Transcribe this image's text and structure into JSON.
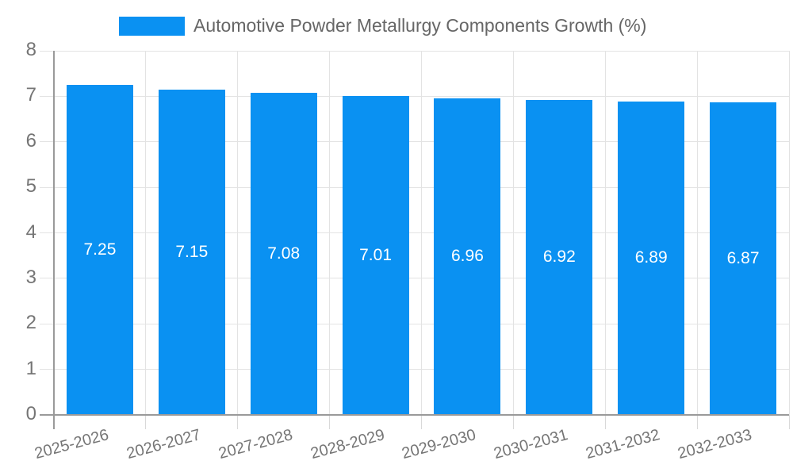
{
  "chart_data": {
    "type": "bar",
    "title": "Automotive Powder Metallurgy Components Growth (%)",
    "categories": [
      "2025-2026",
      "2026-2027",
      "2027-2028",
      "2028-2029",
      "2029-2030",
      "2030-2031",
      "2031-2032",
      "2032-2033"
    ],
    "values": [
      7.25,
      7.15,
      7.08,
      7.01,
      6.96,
      6.92,
      6.89,
      6.87
    ],
    "bar_value_labels": [
      "7.25",
      "7.15",
      "7.08",
      "7.01",
      "6.96",
      "6.92",
      "6.89",
      "6.87"
    ],
    "xlabel": "",
    "ylabel": "",
    "ylim": [
      0,
      8
    ],
    "yticks": [
      0,
      1,
      2,
      3,
      4,
      5,
      6,
      7,
      8
    ],
    "grid": "on",
    "legend_position": "top"
  },
  "colors": {
    "background": "#ffffff",
    "bar": "#0a91f2",
    "bar_value_label": "#ffffff",
    "grid": "#e3e3e3",
    "tick": "#d9d9d9",
    "axis": "#9a9a9a",
    "tick_text": "#757575",
    "legend_text": "#666666"
  }
}
